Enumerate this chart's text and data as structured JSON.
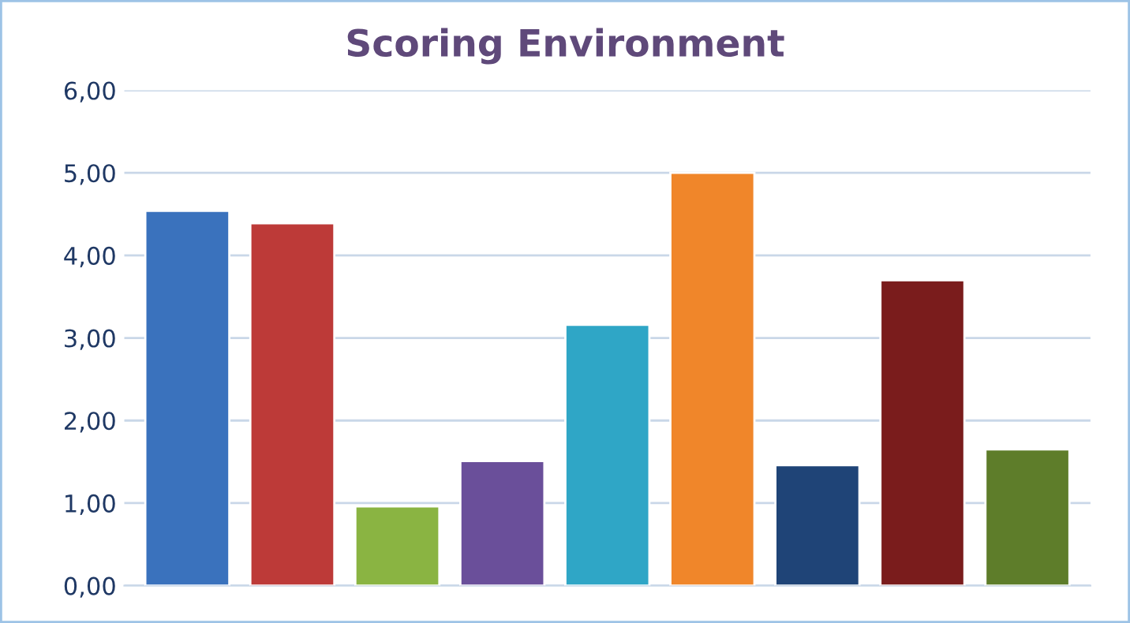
{
  "chart_data": {
    "type": "bar",
    "title": "Scoring Environment",
    "categories": [
      null,
      null,
      null,
      null,
      null,
      null,
      null,
      null,
      null
    ],
    "values": [
      4.54,
      4.39,
      0.96,
      1.51,
      3.16,
      5.0,
      1.46,
      3.7,
      1.65
    ],
    "colors": [
      "#3a72bd",
      "#bd3a38",
      "#8ab442",
      "#6a4f9a",
      "#2fa6c6",
      "#f0862a",
      "#1f4477",
      "#7a1c1c",
      "#5e7d2a"
    ],
    "ylim": [
      0,
      6
    ],
    "yticks": [
      {
        "value": 0,
        "label": "0,00"
      },
      {
        "value": 1,
        "label": "1,00"
      },
      {
        "value": 2,
        "label": "2,00"
      },
      {
        "value": 3,
        "label": "3,00"
      },
      {
        "value": 4,
        "label": "4,00"
      },
      {
        "value": 5,
        "label": "5,00"
      },
      {
        "value": 6,
        "label": "6,00"
      }
    ],
    "grid": "y",
    "legend": false
  }
}
